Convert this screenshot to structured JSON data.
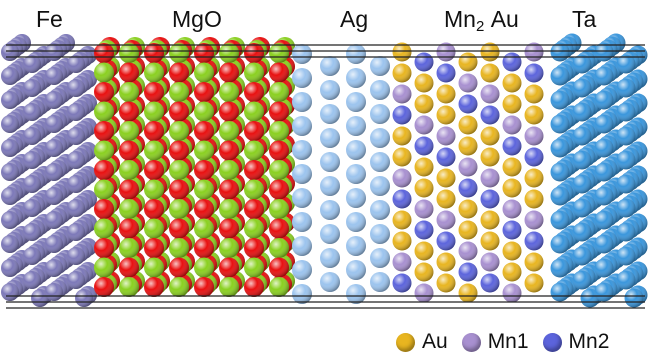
{
  "labels": {
    "fe": "Fe",
    "mgo": "MgO",
    "ag": "Ag",
    "mn2au_base": "Mn",
    "mn2au_sub": "2",
    "mn2au_suffix": "Au",
    "ta": "Ta"
  },
  "legend": [
    {
      "label": "Au",
      "color": "#e8b520"
    },
    {
      "label": "Mn1",
      "color": "#a890d0"
    },
    {
      "label": "Mn2",
      "color": "#5c64dc"
    }
  ],
  "colors": {
    "fe": "#7c78b8",
    "mg": "#8ad020",
    "o": "#e81010",
    "ag": "#9cc4ee",
    "au": "#e8b520",
    "mn1": "#a890d0",
    "mn2": "#5c64dc",
    "ta": "#3a96dc"
  }
}
